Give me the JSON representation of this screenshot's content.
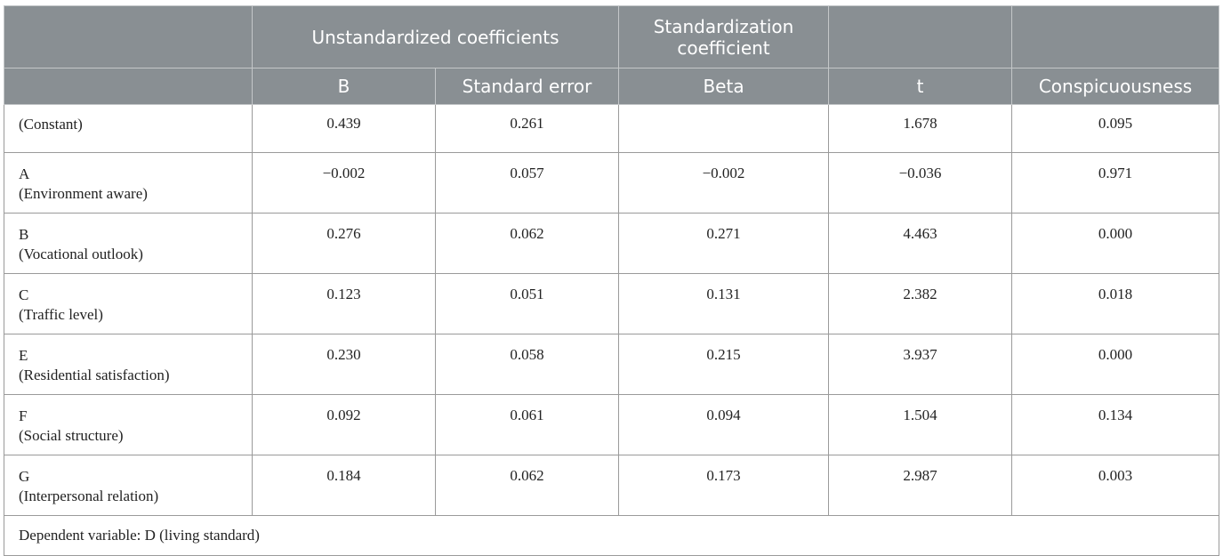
{
  "header": {
    "group_unstd": "Unstandardized coefficients",
    "group_std": "Standardization coefficient",
    "col_b": "B",
    "col_se": "Standard error",
    "col_beta": "Beta",
    "col_t": "t",
    "col_sig": "Conspicuousness"
  },
  "rows": [
    {
      "code": "(Constant)",
      "desc": "",
      "b": "0.439",
      "se": "0.261",
      "beta": "",
      "t": "1.678",
      "sig": "0.095"
    },
    {
      "code": "A",
      "desc": "(Environment aware)",
      "b": "−0.002",
      "se": "0.057",
      "beta": "−0.002",
      "t": "−0.036",
      "sig": "0.971"
    },
    {
      "code": "B",
      "desc": "(Vocational outlook)",
      "b": "0.276",
      "se": "0.062",
      "beta": "0.271",
      "t": "4.463",
      "sig": "0.000"
    },
    {
      "code": "C",
      "desc": "(Traffic level)",
      "b": "0.123",
      "se": "0.051",
      "beta": "0.131",
      "t": "2.382",
      "sig": "0.018"
    },
    {
      "code": "E",
      "desc": "(Residential satisfaction)",
      "b": "0.230",
      "se": "0.058",
      "beta": "0.215",
      "t": "3.937",
      "sig": "0.000"
    },
    {
      "code": "F",
      "desc": "(Social structure)",
      "b": "0.092",
      "se": "0.061",
      "beta": "0.094",
      "t": "1.504",
      "sig": "0.134"
    },
    {
      "code": "G",
      "desc": "(Interpersonal relation)",
      "b": "0.184",
      "se": "0.062",
      "beta": "0.173",
      "t": "2.987",
      "sig": "0.003"
    }
  ],
  "footer": {
    "note": "Dependent variable: D (living standard)"
  },
  "colors": {
    "header_bg": "#898f93",
    "header_text": "#ffffff",
    "border": "#9a9a9a"
  }
}
